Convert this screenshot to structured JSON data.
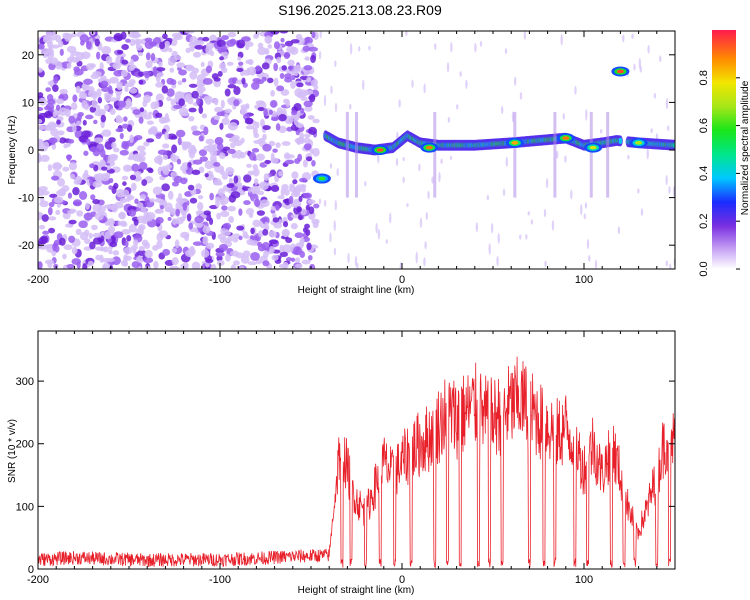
{
  "title": "S196.2025.213.08.23.R09",
  "colors": {
    "snr_line": "#e8202a",
    "axis": "#000000",
    "noise_purple": "#7a2fe0"
  },
  "chart_data": [
    {
      "type": "heatmap",
      "xlabel": "Height of straight line (km)",
      "ylabel": "Frequency (Hz)",
      "xlim": [
        -200,
        150
      ],
      "ylim": [
        -25,
        25
      ],
      "x_ticks": [
        -200,
        -100,
        0,
        100
      ],
      "y_ticks": [
        -20,
        -10,
        0,
        10,
        20
      ],
      "colorbar": {
        "label": "Normalized spectral amplitude",
        "range": [
          0,
          1
        ],
        "ticks": [
          "0.0",
          "0.2",
          "0.4",
          "0.6",
          "0.8"
        ],
        "colormap": "rainbow"
      },
      "noise_region_x": [
        -200,
        -47
      ],
      "signal_ridge": [
        {
          "x": -42,
          "y": 3
        },
        {
          "x": -35,
          "y": 1.5
        },
        {
          "x": -25,
          "y": 0.5
        },
        {
          "x": -15,
          "y": 0
        },
        {
          "x": -5,
          "y": 0.5
        },
        {
          "x": 3,
          "y": 3
        },
        {
          "x": 10,
          "y": 1.5
        },
        {
          "x": 20,
          "y": 1
        },
        {
          "x": 40,
          "y": 1
        },
        {
          "x": 60,
          "y": 1.5
        },
        {
          "x": 75,
          "y": 2
        },
        {
          "x": 90,
          "y": 2.5
        },
        {
          "x": 100,
          "y": 1
        },
        {
          "x": 110,
          "y": 1.5
        },
        {
          "x": 118,
          "y": 2
        },
        {
          "x": 130,
          "y": 1.5
        },
        {
          "x": 150,
          "y": 1
        }
      ],
      "peaks": [
        {
          "x": -12,
          "y": 0,
          "amp": 0.95
        },
        {
          "x": 15,
          "y": 0.5,
          "amp": 0.9
        },
        {
          "x": 62,
          "y": 1.5,
          "amp": 0.85
        },
        {
          "x": 90,
          "y": 2.5,
          "amp": 0.9
        },
        {
          "x": 105,
          "y": 0.5,
          "amp": 0.75
        },
        {
          "x": 120,
          "y": 16.5,
          "amp": 0.95
        },
        {
          "x": 130,
          "y": 1.5,
          "amp": 0.7
        },
        {
          "x": -44,
          "y": -6,
          "amp": 0.6
        }
      ]
    },
    {
      "type": "line",
      "xlabel": "Height of straight line (km)",
      "ylabel": "SNR (10 * v/v)",
      "xlim": [
        -200,
        150
      ],
      "ylim": [
        0,
        380
      ],
      "x_ticks": [
        -200,
        -100,
        0,
        100
      ],
      "y_ticks": [
        0,
        100,
        200,
        300
      ],
      "series": [
        {
          "x": [
            -200,
            -180,
            -160,
            -140,
            -120,
            -100,
            -80,
            -60,
            -40,
            -36,
            -34,
            -30,
            -25,
            -20,
            -15,
            -10,
            -5,
            0,
            5,
            10,
            15,
            20,
            25,
            30,
            35,
            40,
            45,
            50,
            55,
            60,
            65,
            70,
            75,
            80,
            85,
            90,
            95,
            100,
            105,
            110,
            115,
            120,
            125,
            130,
            135,
            140,
            145,
            150
          ],
          "y": [
            15,
            18,
            16,
            14,
            15,
            15,
            17,
            20,
            22,
            140,
            200,
            160,
            110,
            90,
            130,
            170,
            150,
            170,
            190,
            200,
            210,
            230,
            250,
            240,
            250,
            260,
            245,
            240,
            250,
            260,
            270,
            255,
            240,
            230,
            215,
            225,
            200,
            160,
            200,
            150,
            200,
            150,
            90,
            60,
            100,
            150,
            210,
            200
          ]
        }
      ],
      "dropouts": [
        -33,
        -28,
        -20,
        -12,
        -4,
        5,
        18,
        25,
        32,
        42,
        48,
        55,
        70,
        78,
        84,
        95,
        102,
        115,
        122,
        128,
        140,
        147
      ]
    }
  ]
}
